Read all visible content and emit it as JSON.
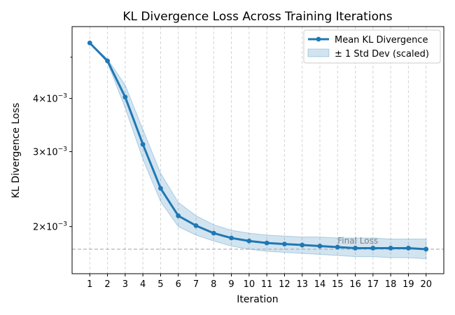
{
  "chart_data": {
    "type": "line",
    "title": "KL Divergence Loss Across Training Iterations",
    "xlabel": "Iteration",
    "ylabel": "KL Divergence Loss",
    "x": [
      1,
      2,
      3,
      4,
      5,
      6,
      7,
      8,
      9,
      10,
      11,
      12,
      13,
      14,
      15,
      16,
      17,
      18,
      19,
      20
    ],
    "xlim": [
      0,
      21
    ],
    "ylim": [
      0.00155,
      0.0059
    ],
    "y_scale": "log",
    "y_ticks": [
      {
        "value": 0.002,
        "label_mantissa": "2",
        "label_exponent": "−3"
      },
      {
        "value": 0.003,
        "label_mantissa": "3",
        "label_exponent": "−3"
      },
      {
        "value": 0.004,
        "label_mantissa": "4",
        "label_exponent": "−3"
      }
    ],
    "y_minor_ticks": [
      0.005
    ],
    "series": [
      {
        "name": "Mean KL Divergence",
        "values": [
          0.0054,
          0.0049,
          0.00403,
          0.00312,
          0.00246,
          0.00212,
          0.00201,
          0.00193,
          0.00188,
          0.00185,
          0.00183,
          0.00182,
          0.00181,
          0.0018,
          0.00179,
          0.00178,
          0.00178,
          0.00178,
          0.00178,
          0.00177
        ],
        "color": "#1f77b4"
      }
    ],
    "band": {
      "name": "± 1 Std Dev (scaled)",
      "upper": [
        0.0054,
        0.00495,
        0.0043,
        0.00338,
        0.00267,
        0.00228,
        0.00212,
        0.00202,
        0.00196,
        0.00193,
        0.00191,
        0.0019,
        0.00189,
        0.00189,
        0.00188,
        0.00188,
        0.00188,
        0.00187,
        0.00187,
        0.00187
      ],
      "lower": [
        0.0054,
        0.00485,
        0.0038,
        0.00288,
        0.00229,
        0.002,
        0.00191,
        0.00185,
        0.0018,
        0.00177,
        0.00175,
        0.00174,
        0.00173,
        0.00172,
        0.00171,
        0.0017,
        0.0017,
        0.00169,
        0.00169,
        0.00168
      ],
      "color": "#1f77b4"
    },
    "reference_line": {
      "value": 0.00177,
      "label": "Final Loss",
      "color": "#a0a0a0"
    },
    "grid": "x-dashed",
    "legend_position": "top-right"
  }
}
